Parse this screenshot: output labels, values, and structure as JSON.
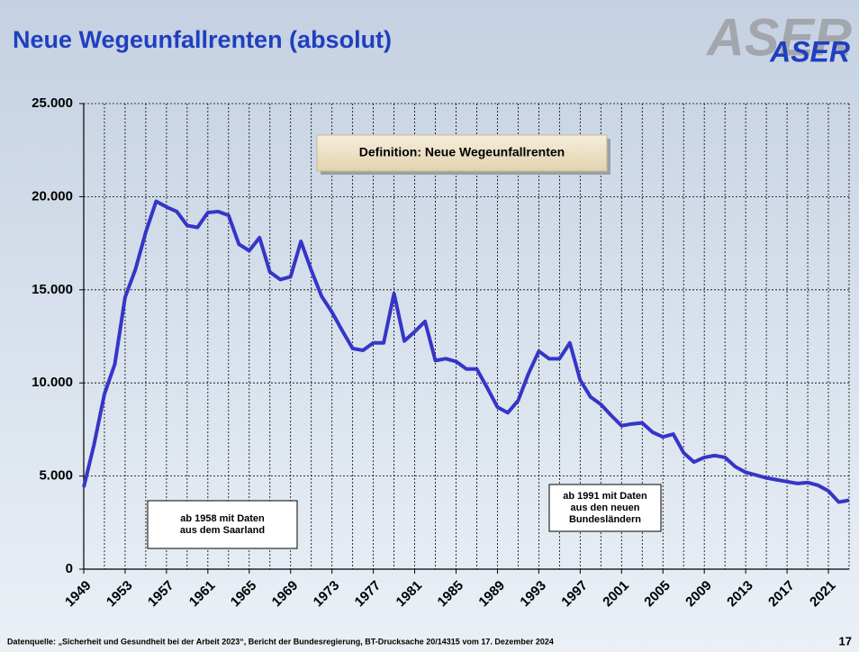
{
  "chart_data": {
    "type": "line",
    "title": "Neue Wegeunfallrenten (absolut)",
    "logo": "ASER",
    "x": [
      1949,
      1950,
      1951,
      1952,
      1953,
      1954,
      1955,
      1956,
      1957,
      1958,
      1959,
      1960,
      1961,
      1962,
      1963,
      1964,
      1965,
      1966,
      1967,
      1968,
      1969,
      1970,
      1971,
      1972,
      1973,
      1974,
      1975,
      1976,
      1977,
      1978,
      1979,
      1980,
      1981,
      1982,
      1983,
      1984,
      1985,
      1986,
      1987,
      1988,
      1989,
      1990,
      1991,
      1992,
      1993,
      1994,
      1995,
      1996,
      1997,
      1998,
      1999,
      2000,
      2001,
      2002,
      2003,
      2004,
      2005,
      2006,
      2007,
      2008,
      2009,
      2010,
      2011,
      2012,
      2013,
      2014,
      2015,
      2016,
      2017,
      2018,
      2019,
      2020,
      2021,
      2022,
      2023
    ],
    "series": [
      {
        "color": "#3535c8",
        "values": [
          4400,
          6700,
          9400,
          11000,
          14600,
          16100,
          18100,
          19750,
          19450,
          19200,
          18450,
          18350,
          19150,
          19200,
          19000,
          17450,
          17100,
          17800,
          15950,
          15550,
          15700,
          17600,
          16050,
          14650,
          13800,
          12800,
          11850,
          11750,
          12150,
          12150,
          14800,
          12250,
          12750,
          13300,
          11200,
          11300,
          11150,
          10750,
          10750,
          9750,
          8700,
          8400,
          9050,
          10500,
          11700,
          11300,
          11300,
          12150,
          10150,
          9250,
          8850,
          8250,
          7700,
          7800,
          7850,
          7350,
          7100,
          7250,
          6250,
          5750,
          6000,
          6100,
          6000,
          5500,
          5200,
          5050,
          4900,
          4800,
          4700,
          4600,
          4650,
          4500,
          4200,
          3600,
          3700
        ]
      }
    ],
    "xlim": [
      1949,
      2023
    ],
    "xticks": [
      1949,
      1953,
      1957,
      1961,
      1965,
      1969,
      1973,
      1977,
      1981,
      1985,
      1989,
      1993,
      1997,
      2001,
      2005,
      2009,
      2013,
      2017,
      2021
    ],
    "minor_xticks": [
      1951,
      1955,
      1959,
      1963,
      1967,
      1971,
      1975,
      1979,
      1983,
      1987,
      1991,
      1995,
      1999,
      2003,
      2007,
      2011,
      2015,
      2019,
      2023
    ],
    "ylim": [
      0,
      25000
    ],
    "yticks": [
      0,
      {
        "value": 5000,
        "label": "5.000"
      },
      {
        "value": 10000,
        "label": "10.000"
      },
      {
        "value": 15000,
        "label": "15.000"
      },
      {
        "value": 20000,
        "label": "20.000"
      },
      {
        "value": 25000,
        "label": "25.000"
      }
    ],
    "grid": true,
    "annotations": [
      {
        "lines": [
          "Definition: Neue Wegeunfallrenten"
        ]
      },
      {
        "lines": [
          "ab 1958 mit Daten",
          "aus dem Saarland"
        ]
      },
      {
        "lines": [
          "ab 1991 mit Daten",
          "aus den neuen",
          "Bundesländern"
        ]
      }
    ],
    "source": "Datenquelle: „Sicherheit und Gesundheit bei der Arbeit 2023“, Bericht der Bundesregierung, BT-Drucksache 20/14315 vom 17. Dezember 2024",
    "page_number": "17"
  }
}
